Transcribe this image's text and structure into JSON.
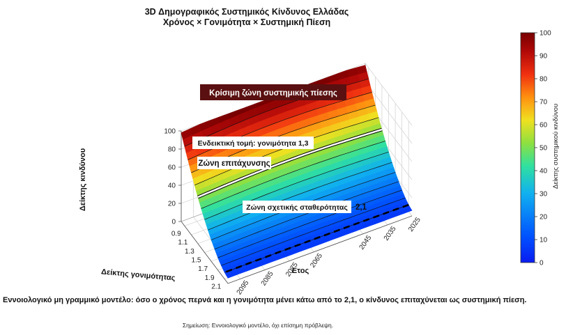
{
  "chart_data": {
    "type": "surface",
    "title": "3D Δημογραφικός Συστημικός Κίνδυνος Ελλάδας",
    "subtitle": "Χρόνος × Γονιμότητα × Συστημική Πίεση",
    "xlabel": "Δείκτης γονιμότητας",
    "ylabel": "Έτος",
    "zlabel": "Δείκτης κινδύνου",
    "x_ticks": [
      "0.9",
      "1.1",
      "1.3",
      "1.5",
      "1.7",
      "1.9",
      "2.1"
    ],
    "y_ticks": [
      "2025",
      "2035",
      "2045",
      "2065",
      "2075",
      "2085",
      "2095"
    ],
    "z_ticks": [
      "0",
      "20",
      "40",
      "60",
      "80",
      "100"
    ],
    "xlim": [
      0.8,
      2.2
    ],
    "ylim": [
      2025,
      2100
    ],
    "zlim": [
      0,
      100
    ],
    "colorbar": {
      "label": "Δείκτης συστημικού κινδύνου",
      "ticks": [
        "0",
        "10",
        "20",
        "30",
        "40",
        "50",
        "60",
        "70",
        "80",
        "90",
        "100"
      ],
      "colormap": "jet",
      "range": [
        0,
        100
      ]
    },
    "surface_samples": [
      {
        "x": 0.8,
        "y": 2100,
        "z": 85
      },
      {
        "x": 0.8,
        "y": 2062,
        "z": 96
      },
      {
        "x": 0.8,
        "y": 2025,
        "z": 88
      },
      {
        "x": 1.5,
        "y": 2100,
        "z": 34
      },
      {
        "x": 1.5,
        "y": 2062,
        "z": 32
      },
      {
        "x": 1.5,
        "y": 2025,
        "z": 30
      },
      {
        "x": 2.2,
        "y": 2100,
        "z": 8
      },
      {
        "x": 2.2,
        "y": 2062,
        "z": 10
      },
      {
        "x": 2.2,
        "y": 2025,
        "z": 6
      }
    ],
    "reference_lines": [
      {
        "label": "Ενδεικτική τομή: γονιμότητα 1,3",
        "x": 1.3,
        "style": "solid-white"
      },
      {
        "label": "2,1",
        "x": 2.1,
        "style": "dashed-black"
      }
    ],
    "annotations": [
      "Κρίσιμη ζώνη συστημικής πίεσης",
      "Ενδεικτική τομή: γονιμότητα 1,3",
      "Ζώνη επιτάχυνσης",
      "Ζώνη σχετικής σταθερότητας",
      "2,1"
    ],
    "grid": true
  },
  "caption": "Εννοιολογικό μη γραμμικό μοντέλο: όσο ο χρόνος περνά και η γονιμότητα μένει κάτω από το 2,1, ο κίνδυνος επιταχύνεται ως συστημική πίεση.",
  "note": "Σημείωση: Εννοιολογικό μοντέλο, όχι επίσημη πρόβλεψη.",
  "colors": {
    "critical_label_bg": "#5a1010",
    "dashed_line": "#000000"
  }
}
